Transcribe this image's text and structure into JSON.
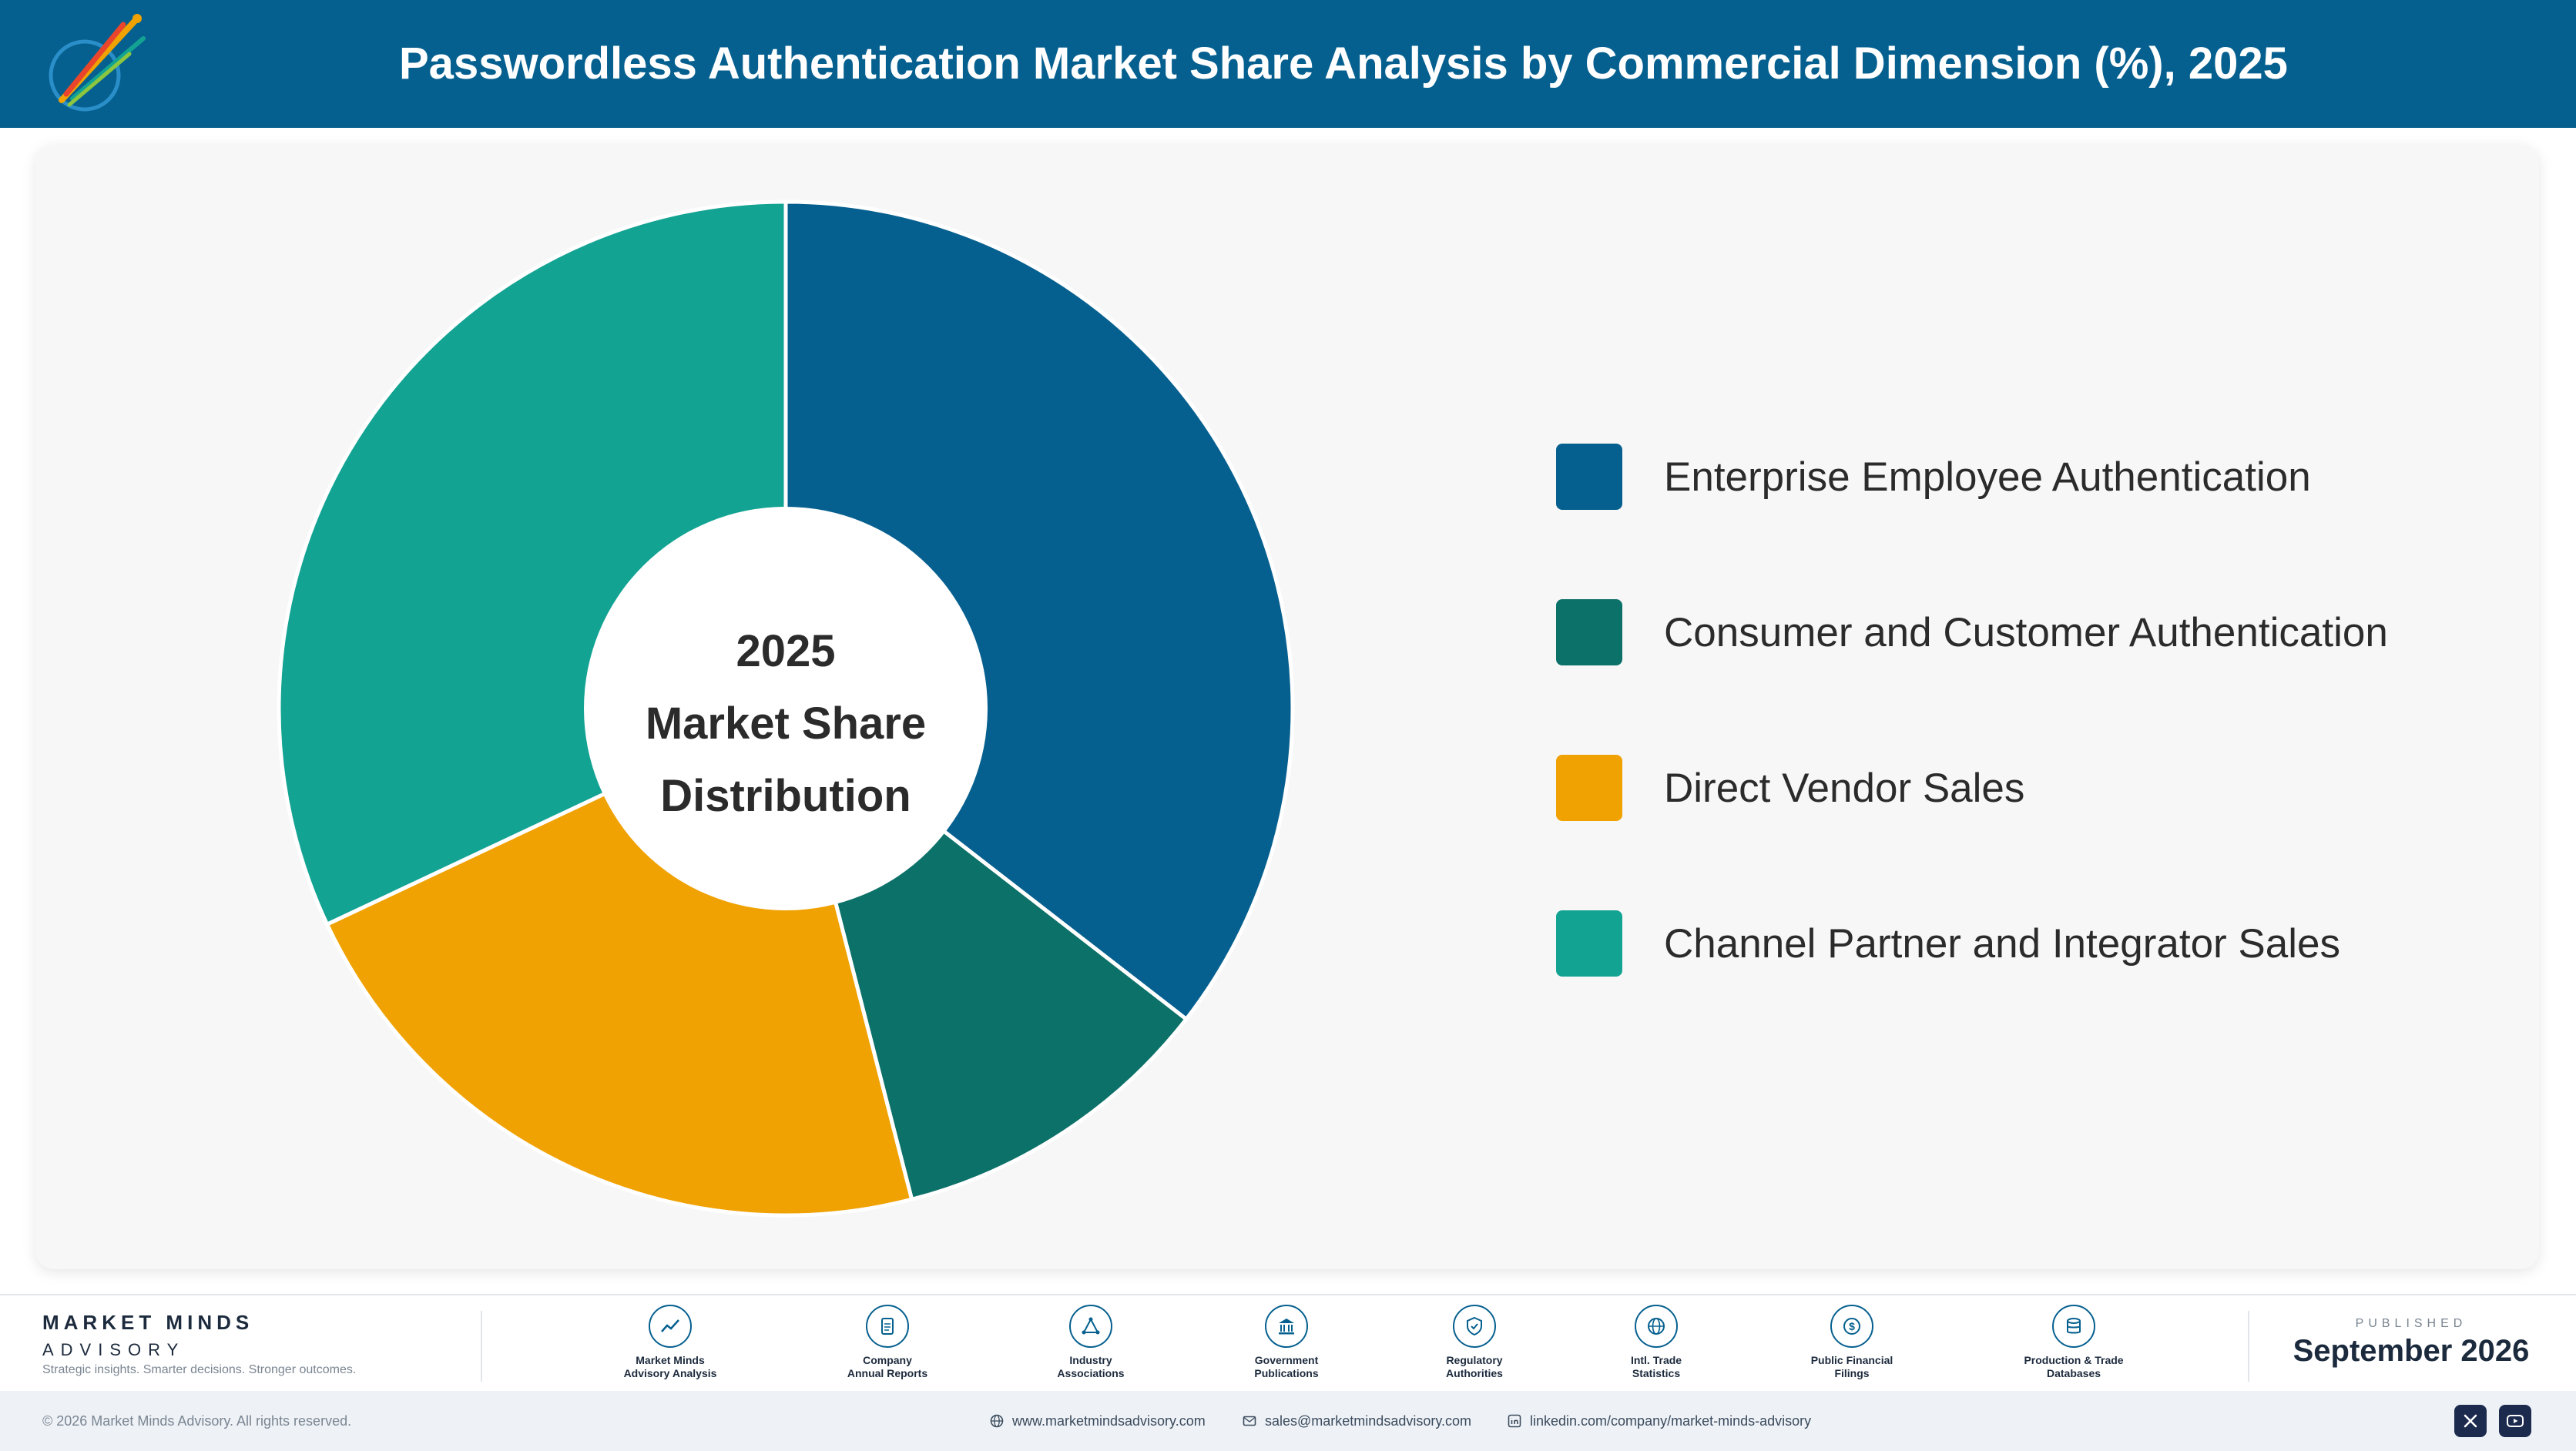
{
  "header": {
    "title": "Passwordless Authentication Market Share Analysis by Commercial Dimension (%), 2025"
  },
  "chart_data": {
    "type": "pie",
    "title": "Passwordless Authentication Market Share Analysis by Commercial Dimension (%), 2025",
    "center_label": [
      "2025",
      "Market Share",
      "Distribution"
    ],
    "categories": [
      "Enterprise Employee Authentication",
      "Consumer and Customer Authentication",
      "Direct Vendor Sales",
      "Channel Partner and Integrator Sales"
    ],
    "values": [
      35.5,
      10.5,
      22.0,
      32.0
    ],
    "colors": [
      "#06608f",
      "#0c7169",
      "#f0a202",
      "#12a393"
    ],
    "legend_position": "right"
  },
  "footer": {
    "brand_name": "MARKET MINDS",
    "brand_sub": "ADVISORY",
    "brand_tag": "Strategic insights. Smarter decisions. Stronger outcomes.",
    "sources": [
      {
        "icon": "trend-chart-icon",
        "line1": "Market Minds",
        "line2": "Advisory Analysis"
      },
      {
        "icon": "document-icon",
        "line1": "Company",
        "line2": "Annual Reports"
      },
      {
        "icon": "network-icon",
        "line1": "Industry",
        "line2": "Associations"
      },
      {
        "icon": "government-building-icon",
        "line1": "Government",
        "line2": "Publications"
      },
      {
        "icon": "shield-check-icon",
        "line1": "Regulatory",
        "line2": "Authorities"
      },
      {
        "icon": "globe-icon",
        "line1": "Intl. Trade",
        "line2": "Statistics"
      },
      {
        "icon": "dollar-coin-icon",
        "line1": "Public Financial",
        "line2": "Filings"
      },
      {
        "icon": "database-icon",
        "line1": "Production & Trade",
        "line2": "Databases"
      }
    ],
    "published_label": "PUBLISHED",
    "published_date": "September 2026",
    "copyright": "© 2026 Market Minds Advisory. All rights reserved.",
    "website": "www.marketmindsadvisory.com",
    "email": "sales@marketmindsadvisory.com",
    "linkedin": "linkedin.com/company/market-minds-advisory"
  }
}
